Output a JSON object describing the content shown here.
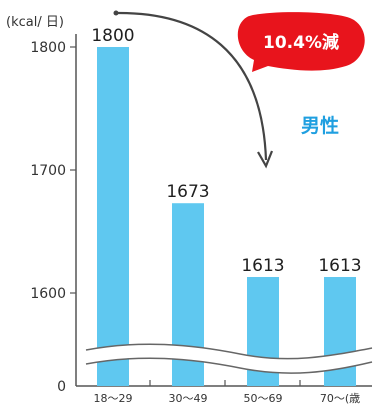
{
  "chart_data": {
    "type": "bar",
    "unit_label": "(kcal/ 日)",
    "categories": [
      "18～29",
      "30～49",
      "50～69",
      "70～(歳"
    ],
    "series": [
      {
        "name": "男性",
        "values": [
          1800,
          1673,
          1613,
          1613
        ]
      }
    ],
    "value_labels": [
      "1800",
      "1673",
      "1613",
      "1613"
    ],
    "y_ticks": [
      {
        "value": 1800,
        "label": "1800"
      },
      {
        "value": 1700,
        "label": "1700"
      },
      {
        "value": 1600,
        "label": "1600"
      },
      {
        "value": 0,
        "label": "0"
      }
    ],
    "axis_break": true,
    "grid": false,
    "annotation": {
      "text": "10.4%減"
    },
    "colors": {
      "bar": "#5fc8f0",
      "series_label": "#1f9fe0",
      "callout": "#e8141c",
      "axis": "#555555"
    }
  }
}
